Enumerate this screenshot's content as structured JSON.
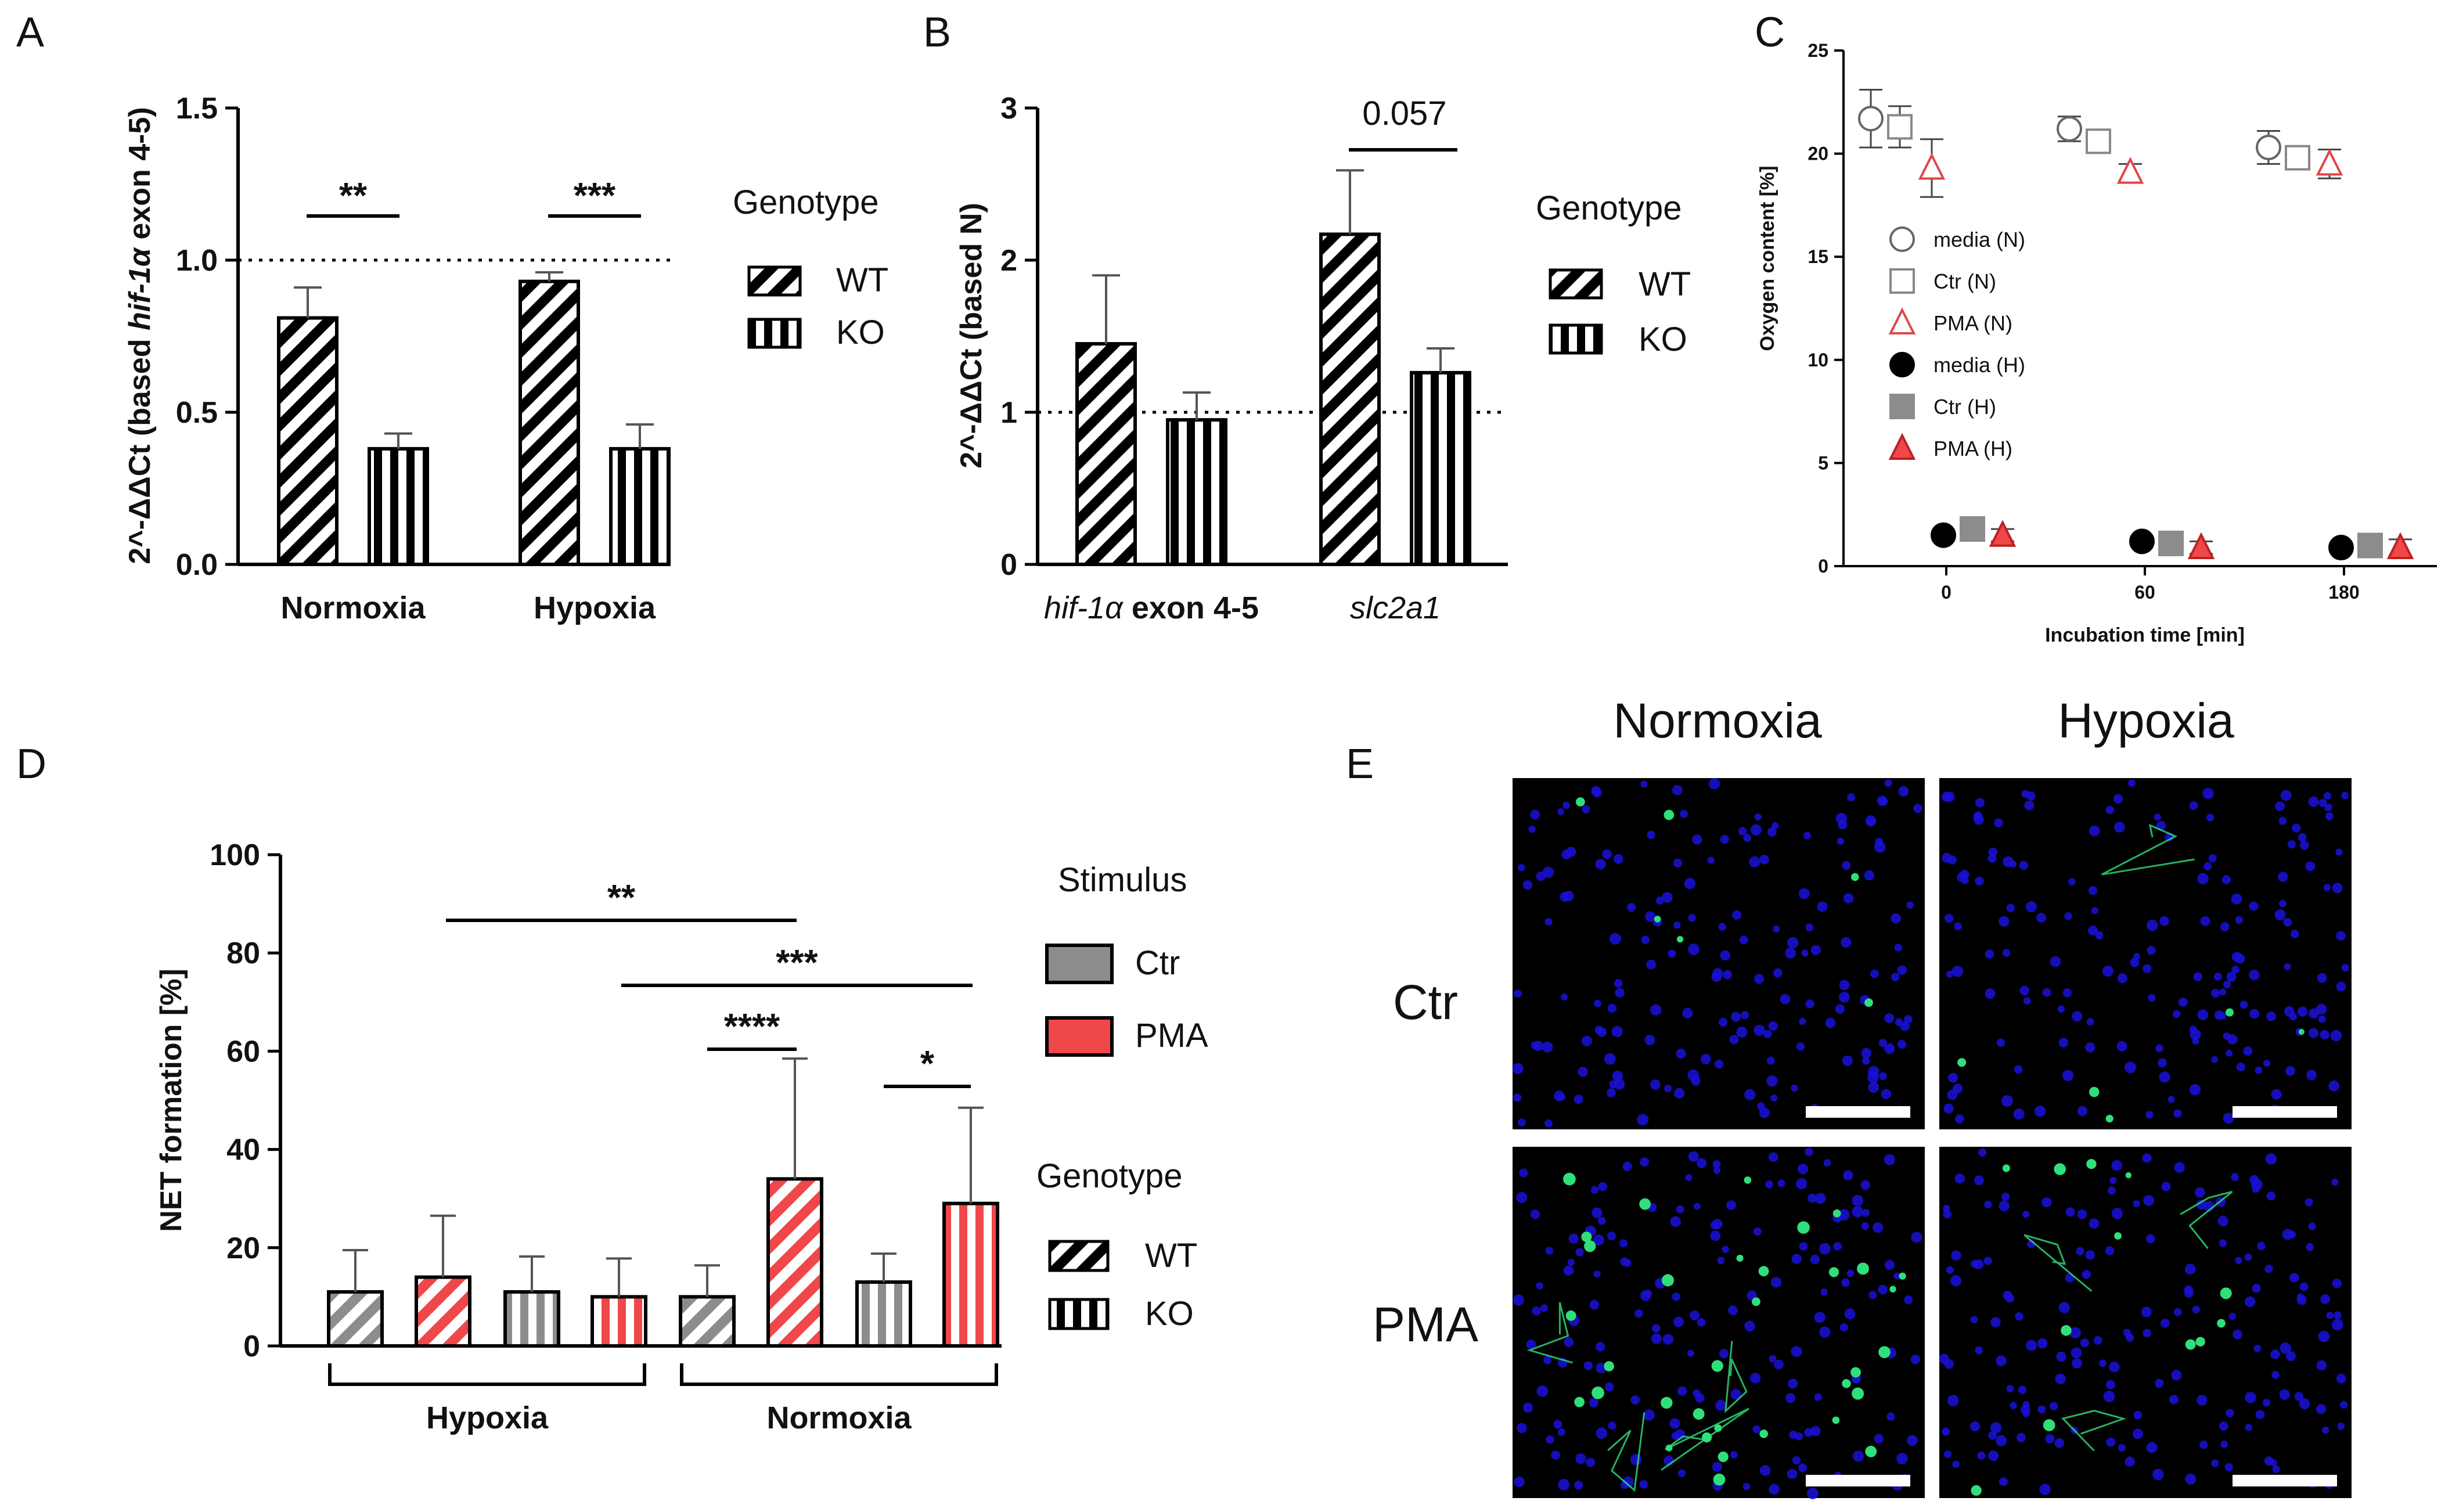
{
  "panels": {
    "A": {
      "letter": "A"
    },
    "B": {
      "letter": "B"
    },
    "C": {
      "letter": "C"
    },
    "D": {
      "letter": "D"
    },
    "E": {
      "letter": "E"
    }
  },
  "colors": {
    "gray": "#8c8c8c",
    "red": "#f0474a",
    "wt_fill": "#000000",
    "blue": "#1a10d8",
    "green": "#2fe07a"
  },
  "chart_data": [
    {
      "id": "A",
      "type": "bar",
      "title": "",
      "ylabel_prefix": "2^-ΔΔCt (based ",
      "ylabel_italic": "hif-1α",
      "ylabel_suffix": " exon 4-5)",
      "ylim": [
        0,
        1.5
      ],
      "yticks": [
        "0.0",
        "0.5",
        "1.0",
        "1.5"
      ],
      "reference_line": 1.0,
      "categories": [
        "Normoxia",
        "Hypoxia"
      ],
      "series": [
        {
          "name": "WT",
          "values": [
            0.81,
            0.93
          ],
          "errors": [
            0.1,
            0.03
          ]
        },
        {
          "name": "KO",
          "values": [
            0.38,
            0.38
          ],
          "errors": [
            0.05,
            0.08
          ]
        }
      ],
      "significance": [
        "**",
        "***"
      ],
      "legend_title": "Genotype",
      "legend": [
        "WT",
        "KO"
      ]
    },
    {
      "id": "B",
      "type": "bar",
      "ylabel": "2^-ΔΔCt (based N)",
      "ylim": [
        0,
        3
      ],
      "yticks": [
        "0",
        "1",
        "2",
        "3"
      ],
      "reference_line": 1.0,
      "categories": [
        {
          "italic": "hif-1α",
          "rest": " exon 4-5"
        },
        {
          "italic": "slc2a1",
          "rest": ""
        }
      ],
      "series": [
        {
          "name": "WT",
          "values": [
            1.45,
            2.17
          ],
          "errors": [
            0.45,
            0.42
          ]
        },
        {
          "name": "KO",
          "values": [
            0.95,
            1.26
          ],
          "errors": [
            0.18,
            0.16
          ]
        }
      ],
      "annotation": "0.057",
      "legend_title": "Genotype",
      "legend": [
        "WT",
        "KO"
      ]
    },
    {
      "id": "C",
      "type": "scatter",
      "xlabel": "Incubation time [min]",
      "ylabel": "Oxygen content [%]",
      "ylim": [
        0,
        25
      ],
      "yticks": [
        "0",
        "5",
        "10",
        "15",
        "20",
        "25"
      ],
      "xticks": [
        "0",
        "60",
        "180"
      ],
      "series": [
        {
          "name": "media (N)",
          "marker": "circle-open",
          "color": "#666666",
          "values": [
            21.7,
            21.2,
            20.3
          ],
          "errors": [
            1.4,
            0.6,
            0.8
          ]
        },
        {
          "name": "Ctr (N)",
          "marker": "square-open",
          "color": "#888888",
          "values": [
            21.3,
            20.6,
            19.8
          ],
          "errors": [
            1.0,
            0.3,
            0.3
          ]
        },
        {
          "name": "PMA (N)",
          "marker": "triangle-open",
          "color": "#e0474a",
          "values": [
            19.3,
            19.1,
            19.5
          ],
          "errors": [
            1.4,
            0.4,
            0.7
          ]
        },
        {
          "name": "media (H)",
          "marker": "circle-filled",
          "color": "#000000",
          "values": [
            1.5,
            1.2,
            0.9
          ],
          "errors": [
            0.2,
            0.2,
            0.1
          ]
        },
        {
          "name": "Ctr (H)",
          "marker": "square-filled",
          "color": "#8c8c8c",
          "values": [
            1.8,
            1.1,
            1.0
          ],
          "errors": [
            0.2,
            0.1,
            0.1
          ]
        },
        {
          "name": "PMA (H)",
          "marker": "triangle-filled",
          "color": "#f0474a",
          "values": [
            1.5,
            0.9,
            0.9
          ],
          "errors": [
            0.3,
            0.3,
            0.4
          ]
        }
      ]
    },
    {
      "id": "D",
      "type": "bar",
      "ylabel": "NET formation [%]",
      "ylim": [
        0,
        100
      ],
      "yticks": [
        "0",
        "20",
        "40",
        "60",
        "80",
        "100"
      ],
      "bars": [
        {
          "group": "Hypoxia",
          "stimulus": "Ctr",
          "genotype": "WT",
          "value": 11,
          "error": 8.5
        },
        {
          "group": "Hypoxia",
          "stimulus": "PMA",
          "genotype": "WT",
          "value": 14,
          "error": 12.5
        },
        {
          "group": "Hypoxia",
          "stimulus": "Ctr",
          "genotype": "KO",
          "value": 11,
          "error": 7.2
        },
        {
          "group": "Hypoxia",
          "stimulus": "PMA",
          "genotype": "KO",
          "value": 10,
          "error": 7.8
        },
        {
          "group": "Normoxia",
          "stimulus": "Ctr",
          "genotype": "WT",
          "value": 10,
          "error": 6.4
        },
        {
          "group": "Normoxia",
          "stimulus": "PMA",
          "genotype": "WT",
          "value": 34,
          "error": 24.5
        },
        {
          "group": "Normoxia",
          "stimulus": "Ctr",
          "genotype": "KO",
          "value": 13,
          "error": 5.8
        },
        {
          "group": "Normoxia",
          "stimulus": "PMA",
          "genotype": "KO",
          "value": 29,
          "error": 19.5
        }
      ],
      "groups": [
        "Hypoxia",
        "Normoxia"
      ],
      "significance": [
        "**",
        "***",
        "****",
        "*"
      ],
      "legend_stimulus_title": "Stimulus",
      "legend_stimulus": [
        "Ctr",
        "PMA"
      ],
      "legend_genotype_title": "Genotype",
      "legend_genotype": [
        "WT",
        "KO"
      ]
    }
  ],
  "images": {
    "col_labels": [
      "Normoxia",
      "Hypoxia"
    ],
    "row_labels": [
      "Ctr",
      "PMA"
    ]
  }
}
